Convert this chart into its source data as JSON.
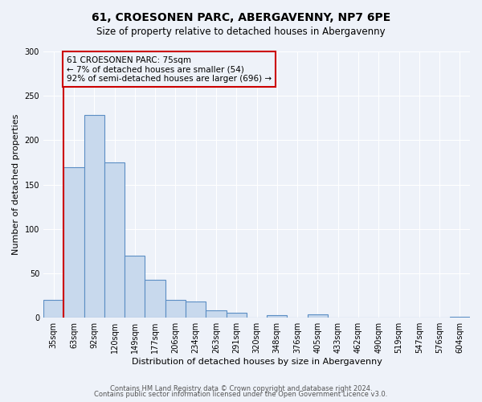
{
  "title": "61, CROESONEN PARC, ABERGAVENNY, NP7 6PE",
  "subtitle": "Size of property relative to detached houses in Abergavenny",
  "xlabel": "Distribution of detached houses by size in Abergavenny",
  "ylabel": "Number of detached properties",
  "footer_line1": "Contains HM Land Registry data © Crown copyright and database right 2024.",
  "footer_line2": "Contains public sector information licensed under the Open Government Licence v3.0.",
  "bin_labels": [
    "35sqm",
    "63sqm",
    "92sqm",
    "120sqm",
    "149sqm",
    "177sqm",
    "206sqm",
    "234sqm",
    "263sqm",
    "291sqm",
    "320sqm",
    "348sqm",
    "376sqm",
    "405sqm",
    "433sqm",
    "462sqm",
    "490sqm",
    "519sqm",
    "547sqm",
    "576sqm",
    "604sqm"
  ],
  "bar_values": [
    20,
    170,
    228,
    175,
    70,
    43,
    20,
    18,
    8,
    6,
    0,
    3,
    0,
    4,
    0,
    0,
    0,
    0,
    0,
    0,
    1
  ],
  "bar_color": "#c8d9ed",
  "bar_edge_color": "#5b8ec4",
  "annotation_box_text": "61 CROESONEN PARC: 75sqm\n← 7% of detached houses are smaller (54)\n92% of semi-detached houses are larger (696) →",
  "annotation_box_edge_color": "#cc0000",
  "vline_color": "#cc0000",
  "vline_x": 1.0,
  "ylim": [
    0,
    300
  ],
  "yticks": [
    0,
    50,
    100,
    150,
    200,
    250,
    300
  ],
  "bg_color": "#eef2f9",
  "grid_color": "#ffffff",
  "title_fontsize": 10,
  "subtitle_fontsize": 8.5,
  "axis_label_fontsize": 8,
  "tick_fontsize": 7,
  "annotation_fontsize": 7.5,
  "footer_fontsize": 6
}
